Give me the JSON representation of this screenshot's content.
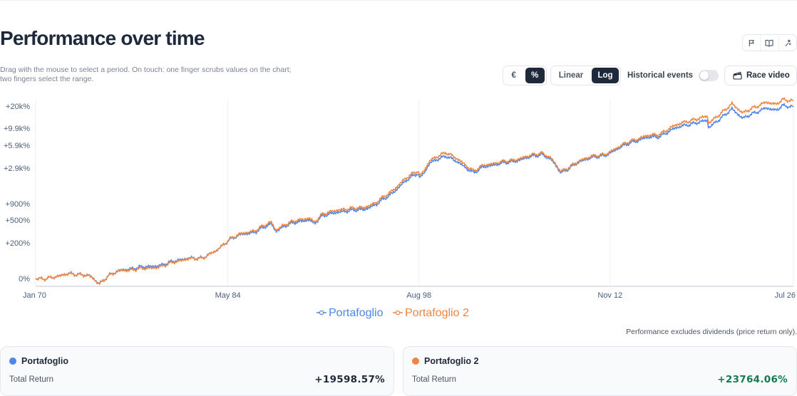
{
  "page": {
    "title": "Performance over time",
    "hint": "Drag with the mouse to select a period. On touch: one finger scrubs values on the chart; two fingers select the range.",
    "note": "Performance excludes dividends (price return only)."
  },
  "top_icons": [
    "flag-icon",
    "book-open-icon",
    "sparkles-icon"
  ],
  "controls": {
    "currency_toggle": [
      {
        "label": "€",
        "active": false
      },
      {
        "label": "%",
        "active": true
      }
    ],
    "scale_toggle": [
      {
        "label": "Linear",
        "active": false
      },
      {
        "label": "Log",
        "active": true
      }
    ],
    "historical_events": {
      "label": "Historical events",
      "on": false
    },
    "race_video": {
      "label": "Race video",
      "icon": "clapperboard-icon"
    }
  },
  "colors": {
    "series1": "#4f86e8",
    "series2": "#ef8640",
    "positive": "#137a4f",
    "active_bg": "#1e293b"
  },
  "chart_data": {
    "type": "line",
    "y_scale": "log",
    "grid": true,
    "legend_position": "bottom-center",
    "x_ticks": [
      "Jan 70",
      "May 84",
      "Aug 98",
      "Nov 12",
      "Jul 26"
    ],
    "y_ticks": [
      "0%",
      "+200%",
      "+500%",
      "+900%",
      "+2.9k%",
      "+5.9k%",
      "+9.9k%",
      "+20k%"
    ],
    "series": [
      {
        "name": "Portafoglio",
        "points": [
          [
            "1970-01",
            0
          ],
          [
            "1970-08",
            -3
          ],
          [
            "1971-06",
            6
          ],
          [
            "1972-06",
            15
          ],
          [
            "1973-06",
            14
          ],
          [
            "1974-01",
            9
          ],
          [
            "1974-10",
            -15
          ],
          [
            "1975-06",
            10
          ],
          [
            "1976-06",
            30
          ],
          [
            "1977-06",
            38
          ],
          [
            "1978-06",
            45
          ],
          [
            "1979-06",
            50
          ],
          [
            "1980-06",
            75
          ],
          [
            "1981-06",
            85
          ],
          [
            "1982-06",
            90
          ],
          [
            "1983-06",
            130
          ],
          [
            "1984-06",
            230
          ],
          [
            "1985-06",
            290
          ],
          [
            "1986-06",
            320
          ],
          [
            "1987-08",
            440
          ],
          [
            "1987-12",
            330
          ],
          [
            "1988-06",
            380
          ],
          [
            "1989-06",
            470
          ],
          [
            "1990-06",
            500
          ],
          [
            "1990-10",
            430
          ],
          [
            "1991-06",
            600
          ],
          [
            "1992-06",
            650
          ],
          [
            "1993-06",
            720
          ],
          [
            "1994-06",
            720
          ],
          [
            "1995-06",
            890
          ],
          [
            "1996-06",
            1200
          ],
          [
            "1997-06",
            1800
          ],
          [
            "1998-07",
            2500
          ],
          [
            "1998-09",
            2100
          ],
          [
            "1999-06",
            3400
          ],
          [
            "2000-08",
            4300
          ],
          [
            "2001-09",
            3300
          ],
          [
            "2002-09",
            2500
          ],
          [
            "2003-06",
            3000
          ],
          [
            "2004-06",
            3300
          ],
          [
            "2005-06",
            3500
          ],
          [
            "2006-06",
            3900
          ],
          [
            "2007-10",
            4500
          ],
          [
            "2008-06",
            3800
          ],
          [
            "2009-03",
            2500
          ],
          [
            "2010-06",
            3400
          ],
          [
            "2011-06",
            4100
          ],
          [
            "2012-06",
            4200
          ],
          [
            "2013-06",
            5400
          ],
          [
            "2014-06",
            6400
          ],
          [
            "2015-06",
            7400
          ],
          [
            "2016-06",
            7600
          ],
          [
            "2017-06",
            9400
          ],
          [
            "2018-06",
            11000
          ],
          [
            "2019-06",
            11800
          ],
          [
            "2020-02",
            12800
          ],
          [
            "2020-03",
            10200
          ],
          [
            "2021-06",
            15000
          ],
          [
            "2021-12",
            18500
          ],
          [
            "2022-10",
            13500
          ],
          [
            "2023-06",
            15500
          ],
          [
            "2024-06",
            19000
          ],
          [
            "2025-03",
            17200
          ],
          [
            "2025-09",
            20500
          ],
          [
            "2026-07",
            19598.57
          ]
        ]
      },
      {
        "name": "Portafoglio 2",
        "points": [
          [
            "1970-01",
            0
          ],
          [
            "1970-08",
            -3
          ],
          [
            "1971-06",
            6
          ],
          [
            "1972-06",
            14
          ],
          [
            "1973-06",
            13
          ],
          [
            "1974-01",
            8
          ],
          [
            "1974-10",
            -16
          ],
          [
            "1975-06",
            9
          ],
          [
            "1976-06",
            28
          ],
          [
            "1977-06",
            32
          ],
          [
            "1978-06",
            38
          ],
          [
            "1979-06",
            44
          ],
          [
            "1980-06",
            70
          ],
          [
            "1981-06",
            82
          ],
          [
            "1982-06",
            88
          ],
          [
            "1983-06",
            130
          ],
          [
            "1984-06",
            235
          ],
          [
            "1985-06",
            300
          ],
          [
            "1986-06",
            340
          ],
          [
            "1987-08",
            470
          ],
          [
            "1987-12",
            345
          ],
          [
            "1988-06",
            400
          ],
          [
            "1989-06",
            500
          ],
          [
            "1990-06",
            530
          ],
          [
            "1990-10",
            455
          ],
          [
            "1991-06",
            640
          ],
          [
            "1992-06",
            700
          ],
          [
            "1993-06",
            770
          ],
          [
            "1994-06",
            770
          ],
          [
            "1995-06",
            950
          ],
          [
            "1996-06",
            1300
          ],
          [
            "1997-06",
            1950
          ],
          [
            "1998-07",
            2700
          ],
          [
            "1998-09",
            2250
          ],
          [
            "1999-06",
            3650
          ],
          [
            "2000-08",
            4800
          ],
          [
            "2001-09",
            3600
          ],
          [
            "2002-09",
            2650
          ],
          [
            "2003-06",
            3150
          ],
          [
            "2004-06",
            3450
          ],
          [
            "2005-06",
            3650
          ],
          [
            "2006-06",
            4050
          ],
          [
            "2007-10",
            4700
          ],
          [
            "2008-06",
            3950
          ],
          [
            "2009-03",
            2600
          ],
          [
            "2010-06",
            3500
          ],
          [
            "2011-06",
            4250
          ],
          [
            "2012-06",
            4350
          ],
          [
            "2013-06",
            5600
          ],
          [
            "2014-06",
            6700
          ],
          [
            "2015-06",
            7800
          ],
          [
            "2016-06",
            8100
          ],
          [
            "2017-06",
            10200
          ],
          [
            "2018-06",
            12200
          ],
          [
            "2019-06",
            13300
          ],
          [
            "2020-02",
            14600
          ],
          [
            "2020-03",
            11800
          ],
          [
            "2021-06",
            17500
          ],
          [
            "2021-12",
            21800
          ],
          [
            "2022-10",
            16000
          ],
          [
            "2023-06",
            18500
          ],
          [
            "2024-06",
            22800
          ],
          [
            "2025-03",
            20800
          ],
          [
            "2025-09",
            24800
          ],
          [
            "2026-07",
            23764.06
          ]
        ]
      }
    ]
  },
  "cards": [
    {
      "name": "Portafoglio",
      "label": "Total Return",
      "value": "+19598.57%"
    },
    {
      "name": "Portafoglio 2",
      "label": "Total Return",
      "value": "+23764.06%"
    }
  ]
}
